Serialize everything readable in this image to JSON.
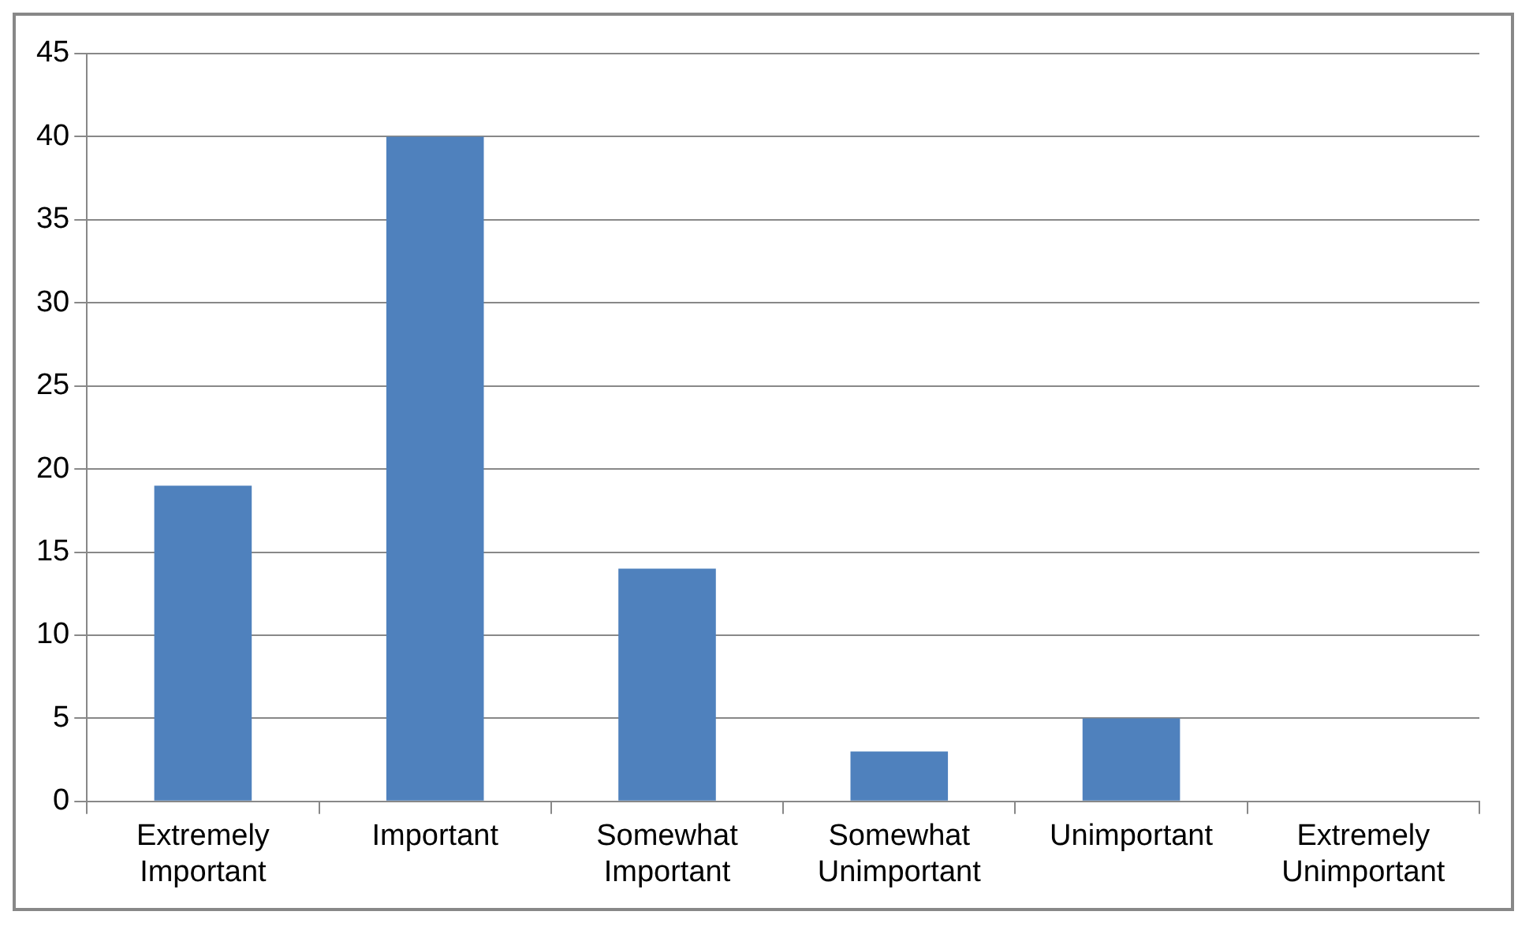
{
  "chart_data": {
    "type": "bar",
    "categories": [
      "Extremely Important",
      "Important",
      "Somewhat Important",
      "Somewhat Unimportant",
      "Unimportant",
      "Extremely Unimportant"
    ],
    "values": [
      19,
      40,
      14,
      3,
      5,
      0
    ],
    "color": "#4f81bd",
    "ylim": [
      0,
      45
    ],
    "yticks": [
      0,
      5,
      10,
      15,
      20,
      25,
      30,
      35,
      40,
      45
    ],
    "grid": "y",
    "legend": false
  }
}
